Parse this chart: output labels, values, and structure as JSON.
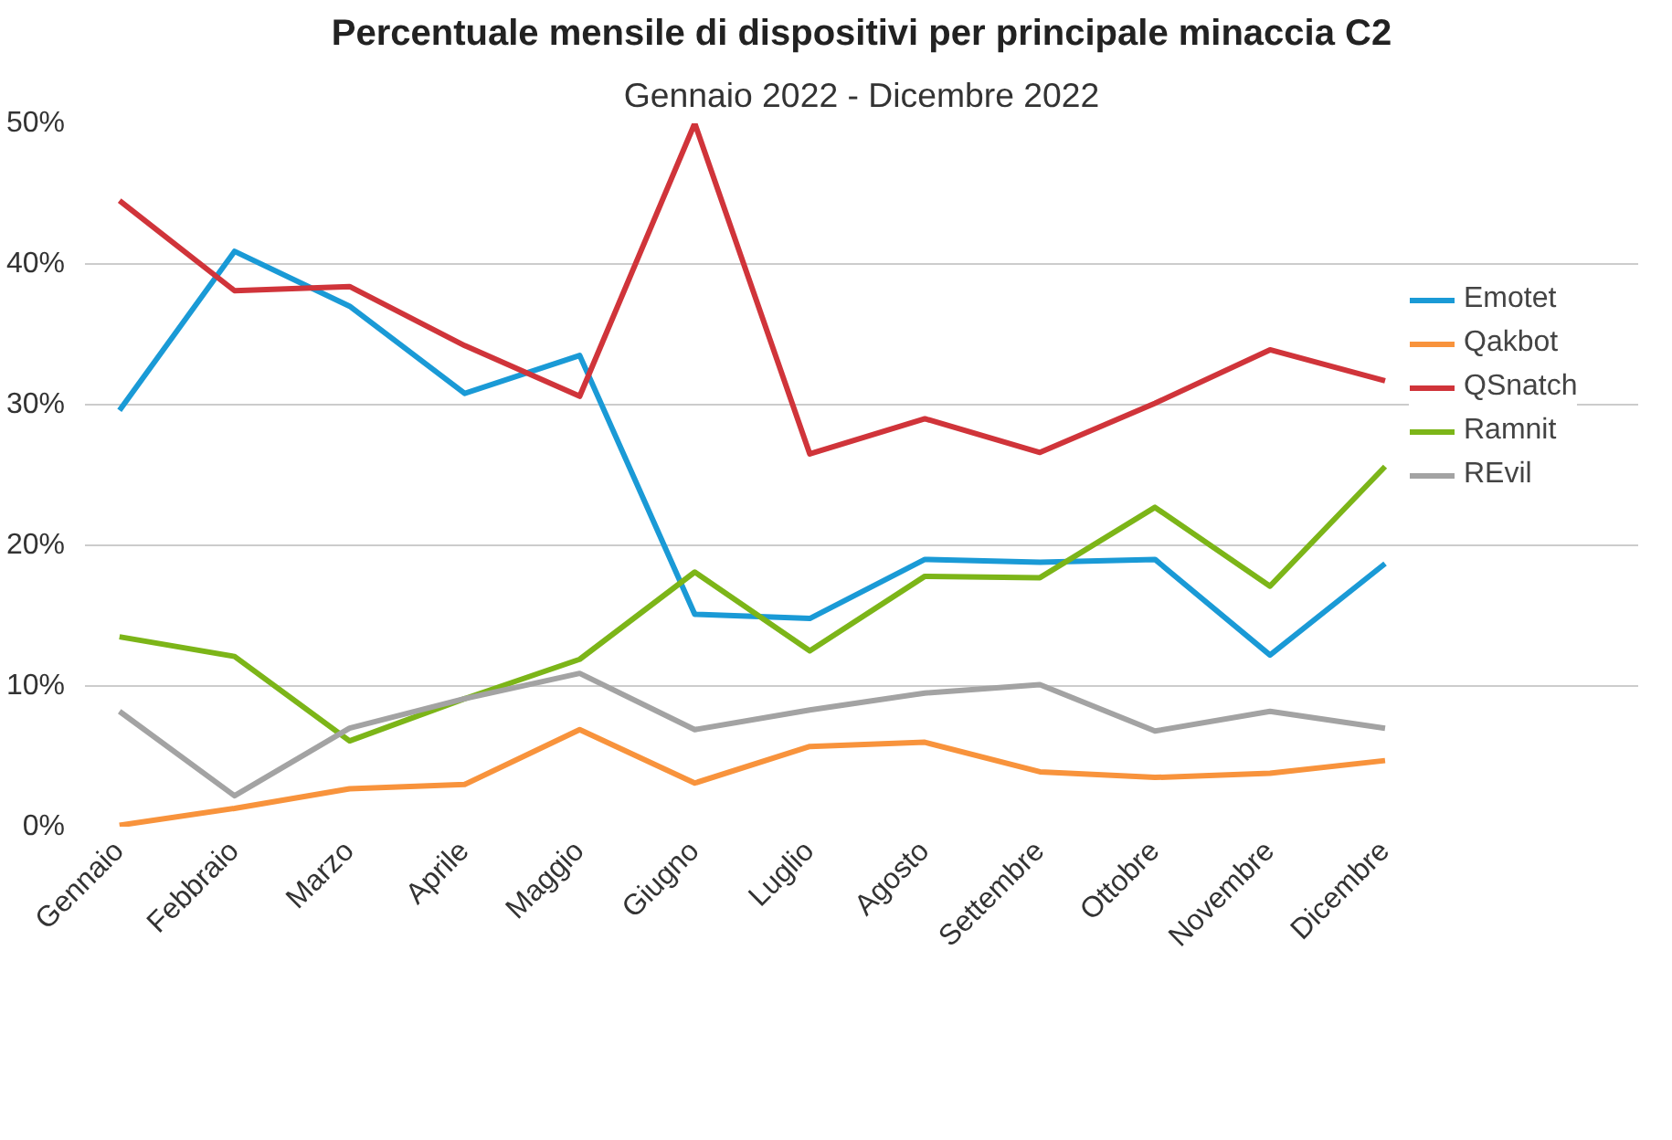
{
  "chart_data": {
    "type": "line",
    "title": "Percentuale mensile di dispositivi per principale minaccia C2",
    "subtitle": "Gennaio 2022 - Dicembre 2022",
    "categories": [
      "Gennaio",
      "Febbraio",
      "Marzo",
      "Aprile",
      "Maggio",
      "Giugno",
      "Luglio",
      "Agosto",
      "Settembre",
      "Ottobre",
      "Novembre",
      "Dicembre"
    ],
    "series": [
      {
        "name": "Emotet",
        "color": "#1a9ad6",
        "values": [
          29.6,
          40.9,
          37.0,
          30.8,
          33.5,
          15.1,
          14.8,
          19.0,
          18.8,
          19.0,
          12.2,
          18.7
        ]
      },
      {
        "name": "Qakbot",
        "color": "#f8933c",
        "values": [
          0.1,
          1.3,
          2.7,
          3.0,
          6.9,
          3.1,
          5.7,
          6.0,
          3.9,
          3.5,
          3.8,
          4.7
        ]
      },
      {
        "name": "QSnatch",
        "color": "#d0343a",
        "values": [
          44.5,
          38.1,
          38.4,
          34.2,
          30.6,
          50.0,
          26.5,
          29.0,
          26.6,
          30.1,
          33.9,
          31.7
        ]
      },
      {
        "name": "Ramnit",
        "color": "#7cb518",
        "values": [
          13.5,
          12.1,
          6.1,
          9.1,
          11.9,
          18.1,
          12.5,
          17.8,
          17.7,
          22.7,
          17.1,
          25.6
        ]
      },
      {
        "name": "REvil",
        "color": "#a3a3a3",
        "values": [
          8.2,
          2.2,
          7.0,
          9.1,
          10.9,
          6.9,
          8.3,
          9.5,
          10.1,
          6.8,
          8.2,
          7.0
        ]
      }
    ],
    "ylim": [
      0,
      50
    ],
    "yticks": [
      {
        "value": 0,
        "label": "0%"
      },
      {
        "value": 10,
        "label": "10%"
      },
      {
        "value": 20,
        "label": "20%"
      },
      {
        "value": 30,
        "label": "30%"
      },
      {
        "value": 40,
        "label": "40%"
      },
      {
        "value": 50,
        "label": "50%"
      }
    ],
    "grid": "y",
    "legend": "right",
    "marker": "none",
    "line_style": "solid"
  }
}
